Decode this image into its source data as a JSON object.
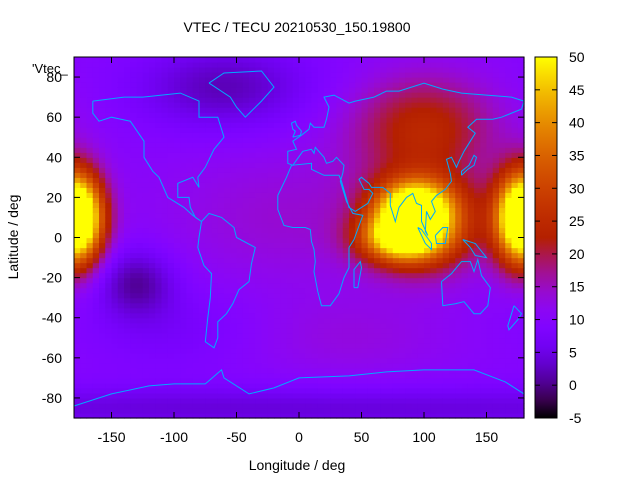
{
  "chart_data": {
    "type": "heatmap",
    "title": "VTEC / TECU 20210530_150.19800",
    "xlabel": "Longitude / deg",
    "ylabel": "Latitude / deg",
    "legend_key": "'Vtec_",
    "xlim": [
      -180,
      180
    ],
    "ylim": [
      -90,
      90
    ],
    "x_ticks": [
      -150,
      -100,
      -50,
      0,
      50,
      100,
      150
    ],
    "y_ticks": [
      -80,
      -60,
      -40,
      -20,
      0,
      20,
      40,
      60,
      80
    ],
    "colorbar": {
      "range": [
        -5,
        50
      ],
      "ticks": [
        -5,
        0,
        5,
        10,
        15,
        20,
        25,
        30,
        35,
        40,
        45,
        50
      ],
      "palette": "black-purple-red-orange-yellow"
    },
    "grid": false,
    "background_tec": 10,
    "hotspots": [
      {
        "lon": 92,
        "lat": 15,
        "tec": 34,
        "slon": 20,
        "slat": 9
      },
      {
        "lon": 82,
        "lat": 0,
        "tec": 34,
        "slon": 22,
        "slat": 8
      },
      {
        "lon": 100,
        "lat": 8,
        "tec": 26,
        "slon": 30,
        "slat": 16
      },
      {
        "lon": -178,
        "lat": 10,
        "tec": 38,
        "slon": 15,
        "slat": 15
      },
      {
        "lon": 178,
        "lat": 10,
        "tec": 28,
        "slon": 15,
        "slat": 16
      },
      {
        "lon": 100,
        "lat": 55,
        "tec": 14,
        "slon": 40,
        "slat": 18
      },
      {
        "lon": -10,
        "lat": 10,
        "tec": 4,
        "slon": 70,
        "slat": 25
      },
      {
        "lon": 40,
        "lat": -50,
        "tec": 3,
        "slon": 60,
        "slat": 15
      },
      {
        "lon": -130,
        "lat": -22,
        "tec": -9,
        "slon": 22,
        "slat": 12
      },
      {
        "lon": -60,
        "lat": 75,
        "tec": -8,
        "slon": 50,
        "slat": 15
      },
      {
        "lon": 0,
        "lat": -85,
        "tec": -6,
        "slon": 360,
        "slat": 8
      },
      {
        "lon": -100,
        "lat": -45,
        "tec": -3,
        "slon": 50,
        "slat": 15
      }
    ],
    "coastlines": [
      {
        "name": "north-america",
        "points": [
          [
            -165,
            68
          ],
          [
            -140,
            70
          ],
          [
            -125,
            70
          ],
          [
            -95,
            72
          ],
          [
            -80,
            68
          ],
          [
            -80,
            60
          ],
          [
            -65,
            60
          ],
          [
            -60,
            50
          ],
          [
            -68,
            44
          ],
          [
            -75,
            35
          ],
          [
            -81,
            30
          ],
          [
            -80,
            25
          ],
          [
            -85,
            30
          ],
          [
            -97,
            27
          ],
          [
            -97,
            20
          ],
          [
            -88,
            20
          ],
          [
            -87,
            15
          ],
          [
            -83,
            10
          ],
          [
            -78,
            8
          ],
          [
            -85,
            11
          ],
          [
            -92,
            15
          ],
          [
            -105,
            20
          ],
          [
            -112,
            30
          ],
          [
            -117,
            33
          ],
          [
            -124,
            40
          ],
          [
            -124,
            48
          ],
          [
            -135,
            58
          ],
          [
            -150,
            60
          ],
          [
            -160,
            58
          ],
          [
            -165,
            62
          ],
          [
            -165,
            68
          ]
        ]
      },
      {
        "name": "south-america",
        "points": [
          [
            -78,
            8
          ],
          [
            -72,
            12
          ],
          [
            -62,
            10
          ],
          [
            -52,
            5
          ],
          [
            -50,
            0
          ],
          [
            -35,
            -5
          ],
          [
            -38,
            -13
          ],
          [
            -40,
            -22
          ],
          [
            -48,
            -26
          ],
          [
            -53,
            -33
          ],
          [
            -58,
            -38
          ],
          [
            -65,
            -42
          ],
          [
            -65,
            -50
          ],
          [
            -68,
            -55
          ],
          [
            -75,
            -52
          ],
          [
            -73,
            -40
          ],
          [
            -71,
            -30
          ],
          [
            -70,
            -18
          ],
          [
            -76,
            -14
          ],
          [
            -81,
            -5
          ],
          [
            -80,
            0
          ],
          [
            -78,
            8
          ]
        ]
      },
      {
        "name": "greenland",
        "points": [
          [
            -72,
            77
          ],
          [
            -60,
            82
          ],
          [
            -30,
            83
          ],
          [
            -20,
            75
          ],
          [
            -30,
            68
          ],
          [
            -43,
            60
          ],
          [
            -50,
            65
          ],
          [
            -55,
            70
          ],
          [
            -72,
            77
          ]
        ]
      },
      {
        "name": "africa-eurasia",
        "points": [
          [
            -17,
            21
          ],
          [
            -17,
            14
          ],
          [
            -12,
            6
          ],
          [
            -5,
            5
          ],
          [
            5,
            5
          ],
          [
            9,
            4
          ],
          [
            10,
            -2
          ],
          [
            12,
            -6
          ],
          [
            13,
            -12
          ],
          [
            12,
            -17
          ],
          [
            15,
            -27
          ],
          [
            18,
            -34
          ],
          [
            25,
            -34
          ],
          [
            32,
            -28
          ],
          [
            36,
            -20
          ],
          [
            40,
            -15
          ],
          [
            40,
            -5
          ],
          [
            44,
            -1
          ],
          [
            51,
            11
          ],
          [
            43,
            12
          ],
          [
            38,
            18
          ],
          [
            33,
            28
          ],
          [
            35,
            32
          ],
          [
            36,
            36
          ],
          [
            30,
            40
          ],
          [
            27,
            38
          ],
          [
            22,
            37
          ],
          [
            20,
            40
          ],
          [
            13,
            45
          ],
          [
            12,
            42
          ],
          [
            10,
            44
          ],
          [
            3,
            43
          ],
          [
            -5,
            36
          ],
          [
            -9,
            37
          ],
          [
            -9,
            43
          ],
          [
            -2,
            44
          ],
          [
            -5,
            48
          ],
          [
            2,
            51
          ],
          [
            8,
            54
          ],
          [
            9,
            57
          ],
          [
            12,
            55
          ],
          [
            20,
            55
          ],
          [
            22,
            59
          ],
          [
            24,
            65
          ],
          [
            20,
            70
          ],
          [
            28,
            71
          ],
          [
            40,
            67
          ],
          [
            45,
            68
          ],
          [
            60,
            70
          ],
          [
            70,
            73
          ],
          [
            80,
            73
          ],
          [
            100,
            77
          ],
          [
            115,
            74
          ],
          [
            130,
            72
          ],
          [
            150,
            71
          ],
          [
            170,
            70
          ],
          [
            180,
            68
          ],
          [
            178,
            64
          ],
          [
            162,
            60
          ],
          [
            155,
            59
          ],
          [
            142,
            59
          ],
          [
            135,
            55
          ],
          [
            141,
            52
          ],
          [
            132,
            43
          ],
          [
            128,
            38
          ],
          [
            126,
            35
          ],
          [
            122,
            40
          ],
          [
            118,
            39
          ],
          [
            121,
            32
          ],
          [
            122,
            28
          ],
          [
            117,
            24
          ],
          [
            110,
            21
          ],
          [
            106,
            18
          ],
          [
            109,
            13
          ],
          [
            105,
            9
          ],
          [
            102,
            13
          ],
          [
            101,
            3
          ],
          [
            103,
            1
          ],
          [
            98,
            8
          ],
          [
            98,
            16
          ],
          [
            94,
            17
          ],
          [
            91,
            22
          ],
          [
            86,
            20
          ],
          [
            80,
            15
          ],
          [
            77,
            8
          ],
          [
            73,
            16
          ],
          [
            73,
            22
          ],
          [
            67,
            25
          ],
          [
            58,
            25
          ],
          [
            56,
            27
          ],
          [
            50,
            30
          ],
          [
            48,
            29
          ],
          [
            52,
            24
          ],
          [
            56,
            24
          ],
          [
            59,
            22
          ],
          [
            55,
            17
          ],
          [
            45,
            13
          ],
          [
            40,
            15
          ],
          [
            34,
            28
          ],
          [
            32,
            31
          ],
          [
            25,
            31
          ],
          [
            20,
            31
          ],
          [
            10,
            34
          ],
          [
            10,
            37
          ],
          [
            -6,
            36
          ],
          [
            -10,
            30
          ],
          [
            -17,
            21
          ]
        ]
      },
      {
        "name": "britain",
        "points": [
          [
            -5,
            50
          ],
          [
            1,
            51
          ],
          [
            2,
            53
          ],
          [
            -2,
            56
          ],
          [
            -3,
            58
          ],
          [
            -6,
            57
          ],
          [
            -5,
            54
          ],
          [
            -3,
            53
          ],
          [
            -5,
            50
          ]
        ]
      },
      {
        "name": "madagascar",
        "points": [
          [
            44,
            -25
          ],
          [
            47,
            -25
          ],
          [
            50,
            -15
          ],
          [
            49,
            -12
          ],
          [
            44,
            -16
          ],
          [
            44,
            -25
          ]
        ]
      },
      {
        "name": "australia",
        "points": [
          [
            114,
            -22
          ],
          [
            122,
            -18
          ],
          [
            130,
            -12
          ],
          [
            137,
            -12
          ],
          [
            140,
            -17
          ],
          [
            143,
            -11
          ],
          [
            146,
            -19
          ],
          [
            153,
            -25
          ],
          [
            151,
            -34
          ],
          [
            145,
            -38
          ],
          [
            140,
            -38
          ],
          [
            132,
            -32
          ],
          [
            125,
            -33
          ],
          [
            115,
            -34
          ],
          [
            114,
            -22
          ]
        ]
      },
      {
        "name": "new-zealand",
        "points": [
          [
            172,
            -34
          ],
          [
            178,
            -38
          ],
          [
            175,
            -41
          ],
          [
            168,
            -46
          ],
          [
            167,
            -44
          ],
          [
            172,
            -34
          ]
        ]
      },
      {
        "name": "sumatra",
        "points": [
          [
            95,
            5
          ],
          [
            98,
            4
          ],
          [
            106,
            -3
          ],
          [
            106,
            -6
          ],
          [
            101,
            -3
          ],
          [
            95,
            5
          ]
        ]
      },
      {
        "name": "borneo",
        "points": [
          [
            109,
            1
          ],
          [
            115,
            5
          ],
          [
            119,
            5
          ],
          [
            117,
            -3
          ],
          [
            110,
            -3
          ],
          [
            109,
            1
          ]
        ]
      },
      {
        "name": "japan",
        "points": [
          [
            130,
            31
          ],
          [
            135,
            34
          ],
          [
            140,
            36
          ],
          [
            142,
            40
          ],
          [
            140,
            41
          ],
          [
            136,
            36
          ],
          [
            130,
            33
          ],
          [
            130,
            31
          ]
        ]
      },
      {
        "name": "new-guinea",
        "points": [
          [
            131,
            -1
          ],
          [
            141,
            -3
          ],
          [
            150,
            -10
          ],
          [
            141,
            -9
          ],
          [
            137,
            -5
          ],
          [
            131,
            -1
          ]
        ]
      },
      {
        "name": "antarctica",
        "points": [
          [
            -180,
            -84
          ],
          [
            -150,
            -78
          ],
          [
            -120,
            -74
          ],
          [
            -100,
            -73
          ],
          [
            -75,
            -73
          ],
          [
            -62,
            -66
          ],
          [
            -60,
            -70
          ],
          [
            -40,
            -78
          ],
          [
            -20,
            -75
          ],
          [
            0,
            -70
          ],
          [
            40,
            -69
          ],
          [
            70,
            -67
          ],
          [
            100,
            -66
          ],
          [
            140,
            -66
          ],
          [
            165,
            -72
          ],
          [
            180,
            -78
          ]
        ]
      }
    ]
  }
}
